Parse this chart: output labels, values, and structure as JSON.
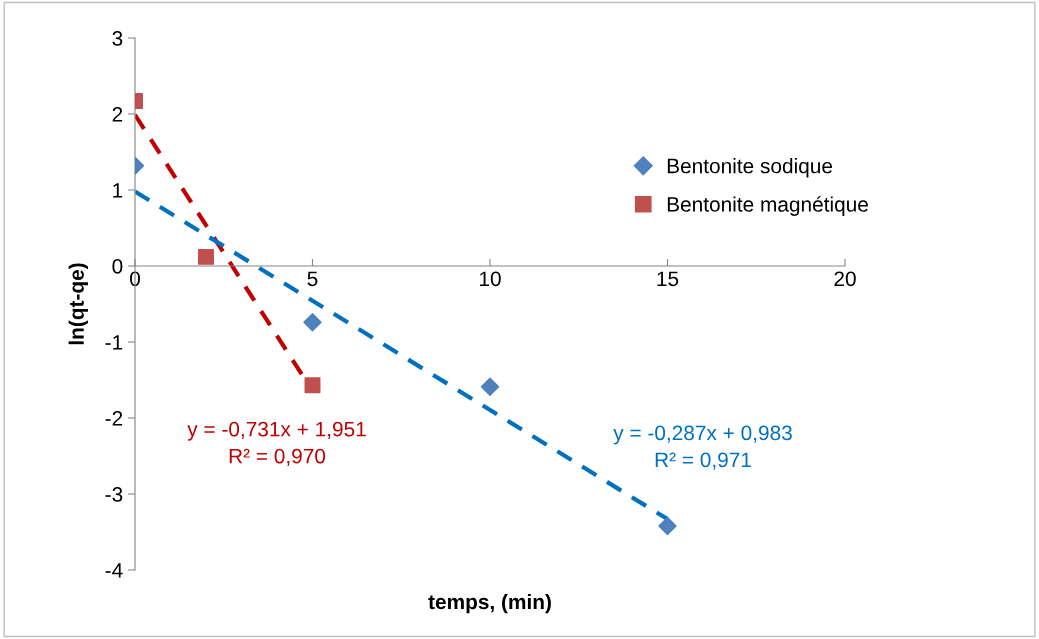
{
  "chart_data": {
    "type": "scatter",
    "xlabel": "temps, (min)",
    "ylabel": "ln(qt-qe)",
    "xlim": [
      0,
      20
    ],
    "xticks": [
      0,
      5,
      10,
      15,
      20
    ],
    "ylim": [
      -4,
      3
    ],
    "yticks": [
      -4,
      -3,
      -2,
      -1,
      0,
      1,
      2,
      3
    ],
    "grid": false,
    "legend": "right",
    "series": [
      {
        "name": "Bentonite sodique",
        "color": "#4f81bd",
        "marker": "diamond",
        "x": [
          0,
          5,
          10,
          15
        ],
        "values": [
          1.32,
          -0.74,
          -1.59,
          -3.42
        ]
      },
      {
        "name": "Bentonite magnétique",
        "color": "#c0504d",
        "marker": "square",
        "x": [
          0,
          2,
          5
        ],
        "values": [
          2.17,
          0.12,
          -1.57
        ]
      },
      {
        "type": "line",
        "line_style": "dashed",
        "color": "#c00000",
        "x": [
          0,
          4.8
        ],
        "values": [
          1.99,
          -1.5
        ]
      },
      {
        "type": "line",
        "line_style": "dashed",
        "color": "#0070c0",
        "x": [
          0,
          15
        ],
        "values": [
          0.98,
          -3.33
        ]
      }
    ],
    "annotations": [
      "y = -0,731x + 1,951\nR² = 0,970",
      "y = -0,287x + 0,983\nR² = 0,971"
    ]
  }
}
